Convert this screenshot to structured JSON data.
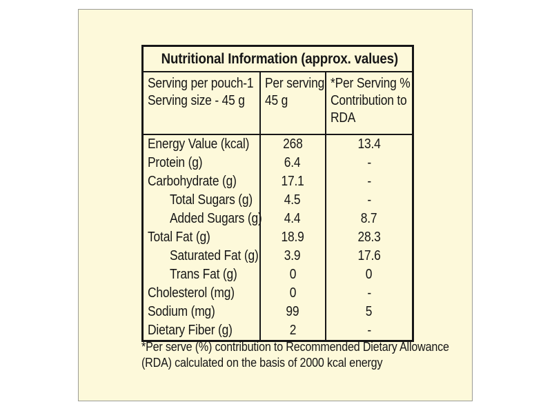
{
  "colors": {
    "page_bg": "#ffffff",
    "card_bg": "#fdf9da",
    "card_border": "#9a9a94",
    "line_and_text": "#161616"
  },
  "table": {
    "title": "Nutritional Information (approx. values)",
    "header": {
      "col1": "Serving per pouch-1\nServing size - 45 g",
      "col2": "Per serving\n45 g",
      "col3": "*Per Serving %\nContribution to\nRDA"
    },
    "rows": [
      {
        "label": "Energy Value (kcal)",
        "per_serving": "268",
        "rda": "13.4",
        "indent": false
      },
      {
        "label": "Protein (g)",
        "per_serving": "6.4",
        "rda": "-",
        "indent": false
      },
      {
        "label": "Carbohydrate (g)",
        "per_serving": "17.1",
        "rda": "-",
        "indent": false
      },
      {
        "label": "Total Sugars (g)",
        "per_serving": "4.5",
        "rda": "-",
        "indent": true
      },
      {
        "label": "Added Sugars (g)",
        "per_serving": "4.4",
        "rda": "8.7",
        "indent": true
      },
      {
        "label": "Total Fat (g)",
        "per_serving": "18.9",
        "rda": "28.3",
        "indent": false
      },
      {
        "label": "Saturated Fat (g)",
        "per_serving": "3.9",
        "rda": "17.6",
        "indent": true
      },
      {
        "label": "Trans Fat (g)",
        "per_serving": "0",
        "rda": "0",
        "indent": true
      },
      {
        "label": "Cholesterol (mg)",
        "per_serving": "0",
        "rda": "-",
        "indent": false
      },
      {
        "label": "Sodium (mg)",
        "per_serving": "99",
        "rda": "5",
        "indent": false
      },
      {
        "label": "Dietary Fiber (g)",
        "per_serving": "2",
        "rda": "-",
        "indent": false
      }
    ]
  },
  "footnote": "*Per serve (%) contribution to Recommended Dietary Allowance\n(RDA) calculated on the basis of 2000 kcal energy"
}
